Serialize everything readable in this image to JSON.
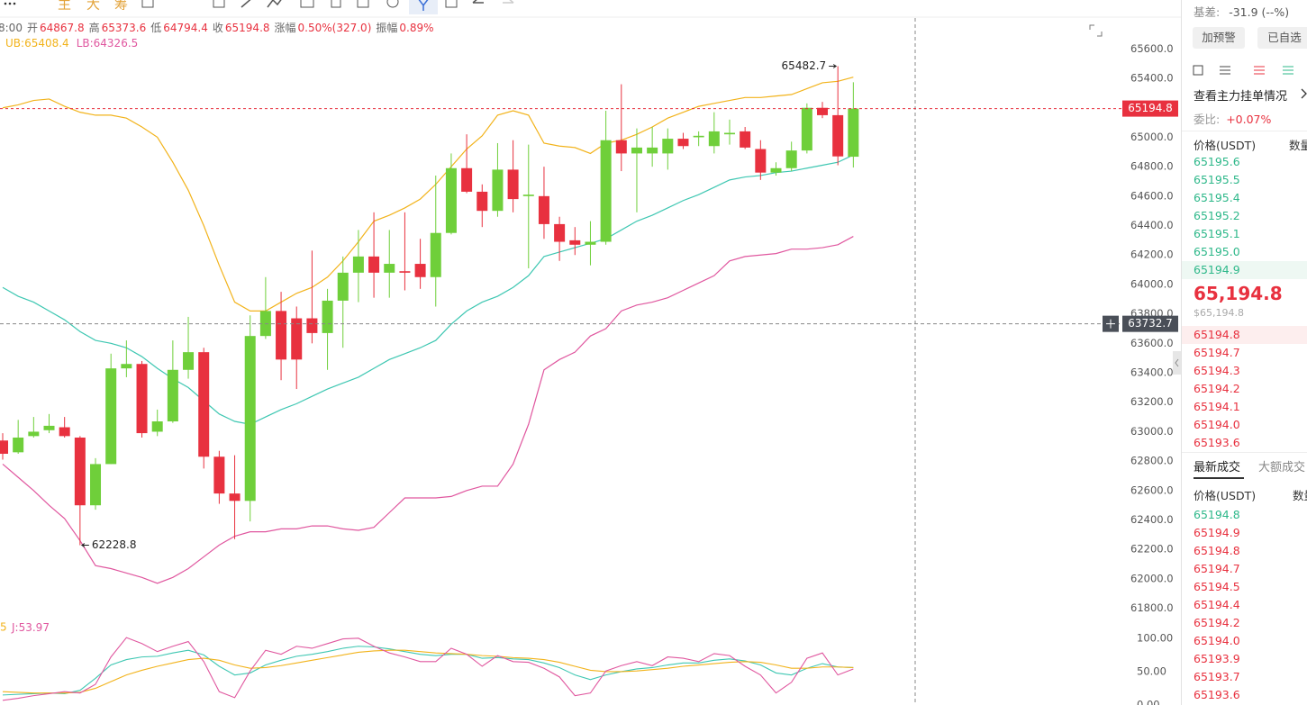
{
  "toolbar": {
    "labels": [
      "主",
      "大",
      "筹"
    ]
  },
  "info_bar": {
    "time": "8:00",
    "items": [
      {
        "label": "开",
        "value": "64867.8"
      },
      {
        "label": "高",
        "value": "65373.6"
      },
      {
        "label": "低",
        "value": "64794.4"
      },
      {
        "label": "收",
        "value": "65194.8"
      },
      {
        "label": "涨幅",
        "value": "0.50%(327.0)"
      },
      {
        "label": "振幅",
        "value": "0.89%"
      }
    ]
  },
  "chart_data": [
    {
      "type": "candlestick",
      "up_color": "#6fcf3a",
      "down_color": "#e8313f",
      "open": [
        62940,
        62860,
        62970,
        63010,
        63030,
        62960,
        62500,
        62780,
        63430,
        63460,
        63000,
        63070,
        63420,
        63540,
        62830,
        62580,
        62530,
        63650,
        63820,
        63770,
        63770,
        63670,
        63890,
        64080,
        64190,
        64080,
        64090,
        64140,
        64050,
        64350,
        64790,
        64630,
        64500,
        64780,
        64600,
        64600,
        64410,
        64300,
        64270,
        64290,
        64980,
        64890,
        64890,
        64890,
        64990,
        65000,
        64940,
        65020,
        65040,
        64920,
        64760,
        64790,
        64910,
        65200,
        65150,
        64867.8
      ],
      "high": [
        62990,
        63080,
        63100,
        63120,
        63100,
        62970,
        62820,
        63530,
        63620,
        63480,
        63150,
        63620,
        63780,
        63570,
        62870,
        62840,
        63790,
        64050,
        63950,
        63850,
        64230,
        63970,
        64190,
        64370,
        64490,
        64370,
        64490,
        64310,
        64740,
        64890,
        65020,
        64680,
        64960,
        64980,
        64950,
        64800,
        64460,
        64390,
        64430,
        65180,
        65360,
        65060,
        65070,
        65060,
        65030,
        65040,
        65170,
        65120,
        65070,
        64980,
        64830,
        64970,
        65230,
        65240,
        65482.7,
        65373.6
      ],
      "low": [
        62810,
        62850,
        62960,
        62990,
        62960,
        62228.8,
        62470,
        62780,
        63370,
        62960,
        62970,
        63060,
        63360,
        62750,
        62510,
        62270,
        62390,
        63630,
        63350,
        63290,
        63600,
        63420,
        63570,
        63880,
        63910,
        63910,
        63960,
        63970,
        63850,
        64340,
        64620,
        64390,
        64460,
        64490,
        64110,
        64310,
        64160,
        64200,
        64130,
        64270,
        64770,
        64490,
        64800,
        64780,
        64920,
        64940,
        64890,
        64950,
        64920,
        64710,
        64740,
        64770,
        64890,
        65130,
        64810,
        64794.4
      ],
      "close": [
        62850,
        62960,
        63000,
        63040,
        62970,
        62500,
        62780,
        63430,
        63460,
        62990,
        63070,
        63420,
        63540,
        62830,
        62580,
        62530,
        63650,
        63820,
        63490,
        63490,
        63670,
        63890,
        64080,
        64190,
        64080,
        64140,
        64080,
        64050,
        64350,
        64790,
        64630,
        64500,
        64780,
        64580,
        64610,
        64410,
        64290,
        64270,
        64290,
        64980,
        64890,
        64930,
        64930,
        64990,
        64940,
        65010,
        65040,
        65030,
        64930,
        64760,
        64790,
        64910,
        65200,
        65150,
        64870,
        65194.8
      ],
      "series": [
        {
          "name": "UB:",
          "color": "#f2b31b",
          "values": [
            65200,
            65220,
            65250,
            65260,
            65210,
            65170,
            65150,
            65150,
            65130,
            65070,
            65000,
            64830,
            64640,
            64400,
            64130,
            63880,
            63820,
            63820,
            63880,
            63940,
            63980,
            64050,
            64160,
            64290,
            64430,
            64470,
            64520,
            64580,
            64680,
            64800,
            64920,
            65010,
            65150,
            65180,
            65150,
            64960,
            64940,
            64930,
            64890,
            64960,
            64980,
            65020,
            65070,
            65130,
            65170,
            65210,
            65230,
            65250,
            65270,
            65270,
            65280,
            65290,
            65330,
            65370,
            65380,
            65408.4
          ]
        },
        {
          "color": "#3ec7b2",
          "values": [
            63980,
            63920,
            63880,
            63820,
            63760,
            63680,
            63620,
            63600,
            63570,
            63510,
            63430,
            63360,
            63300,
            63210,
            63120,
            63070,
            63050,
            63100,
            63150,
            63190,
            63240,
            63290,
            63330,
            63370,
            63430,
            63490,
            63530,
            63570,
            63620,
            63730,
            63820,
            63880,
            63920,
            63980,
            64060,
            64190,
            64220,
            64250,
            64280,
            64310,
            64370,
            64430,
            64470,
            64520,
            64570,
            64610,
            64660,
            64710,
            64730,
            64740,
            64760,
            64770,
            64790,
            64810,
            64830,
            64880
          ]
        },
        {
          "name": "LB:",
          "color": "#e0579f",
          "values": [
            62780,
            62690,
            62600,
            62500,
            62410,
            62260,
            62090,
            62070,
            62040,
            62010,
            61970,
            62010,
            62070,
            62150,
            62230,
            62290,
            62320,
            62320,
            62340,
            62340,
            62360,
            62360,
            62340,
            62330,
            62350,
            62450,
            62550,
            62550,
            62550,
            62560,
            62600,
            62630,
            62630,
            62780,
            63050,
            63420,
            63490,
            63540,
            63650,
            63700,
            63820,
            63860,
            63880,
            63910,
            63960,
            64010,
            64060,
            64160,
            64190,
            64200,
            64210,
            64240,
            64240,
            64250,
            64270,
            64326.5
          ]
        }
      ],
      "crosshair": 63732.7,
      "ylim": [
        61700,
        65810
      ],
      "yticks": [
        {
          "value": 61800,
          "label": "61800.0"
        },
        {
          "value": 62000,
          "label": "62000.0"
        },
        {
          "value": 62200,
          "label": "62200.0"
        },
        {
          "value": 62400,
          "label": "62400.0"
        },
        {
          "value": 62600,
          "label": "62600.0"
        },
        {
          "value": 62800,
          "label": "62800.0"
        },
        {
          "value": 63000,
          "label": "63000.0"
        },
        {
          "value": 63200,
          "label": "63200.0"
        },
        {
          "value": 63400,
          "label": "63400.0"
        },
        {
          "value": 63600,
          "label": "63600.0"
        },
        {
          "value": 63800,
          "label": "63800.0"
        },
        {
          "value": 64000,
          "label": "64000.0"
        },
        {
          "value": 64200,
          "label": "64200.0"
        },
        {
          "value": 64400,
          "label": "64400.0"
        },
        {
          "value": 64600,
          "label": "64600.0"
        },
        {
          "value": 64800,
          "label": "64800.0"
        },
        {
          "value": 65000,
          "label": "65000.0"
        },
        {
          "value": 65200,
          "label": "65200.0"
        },
        {
          "value": 65400,
          "label": "65400.0"
        },
        {
          "value": 65600,
          "label": "65600.0"
        }
      ]
    },
    {
      "type": "line",
      "clipped_legend": "5",
      "series": [
        {
          "color": "#3ec7b2",
          "values": [
            15,
            16,
            17,
            18,
            17,
            22,
            40,
            60,
            68,
            72,
            73,
            78,
            82,
            75,
            58,
            45,
            48,
            60,
            67,
            73,
            76,
            80,
            85,
            88,
            87,
            84,
            80,
            76,
            74,
            76,
            76,
            70,
            71,
            69,
            68,
            63,
            56,
            45,
            38,
            45,
            50,
            54,
            56,
            60,
            63,
            63,
            67,
            69,
            66,
            60,
            48,
            45,
            55,
            62,
            57,
            56
          ]
        },
        {
          "color": "#f2b31b",
          "values": [
            20,
            19,
            18,
            18,
            18,
            19,
            25,
            35,
            45,
            52,
            58,
            63,
            68,
            70,
            67,
            60,
            55,
            56,
            59,
            63,
            67,
            71,
            75,
            79,
            81,
            82,
            82,
            80,
            78,
            77,
            76,
            74,
            73,
            71,
            70,
            68,
            64,
            58,
            52,
            50,
            50,
            51,
            53,
            55,
            58,
            60,
            62,
            64,
            65,
            64,
            60,
            55,
            55,
            57,
            57,
            56
          ]
        },
        {
          "name": "J:",
          "color": "#e0579f",
          "values": [
            7,
            10,
            14,
            17,
            20,
            18,
            31,
            72,
            101,
            92,
            80,
            88,
            95,
            65,
            20,
            11,
            51,
            82,
            76,
            88,
            85,
            92,
            99,
            100,
            88,
            78,
            72,
            65,
            65,
            85,
            76,
            58,
            74,
            65,
            64,
            55,
            42,
            14,
            18,
            51,
            59,
            65,
            59,
            72,
            70,
            65,
            77,
            74,
            58,
            45,
            18,
            34,
            70,
            78,
            45,
            53.97
          ]
        }
      ],
      "ylim": [
        0,
        116
      ],
      "yticks": [
        {
          "value": 0,
          "label": "0.00"
        },
        {
          "value": 50,
          "label": "50.00"
        },
        {
          "value": 100,
          "label": "100.00"
        }
      ]
    }
  ],
  "panel": {
    "basis_label": "基差:",
    "basis_value": "-31.9 (--%)",
    "buttons": [
      "加预警",
      "已自选"
    ],
    "main_orders_link": "查看主力挂单情况",
    "ratio_label": "委比:",
    "ratio_value": "+0.07%",
    "book_headers": [
      "价格(USDT)",
      "数量"
    ],
    "ask_color": "#2eb88a",
    "bid_color": "#e8313f",
    "asks": [
      "65195.6",
      "65195.5",
      "65195.4",
      "65195.2",
      "65195.1",
      "65195.0",
      "65194.9"
    ],
    "last_price": "65,194.8",
    "last_price_usd": "$65,194.8",
    "bids": [
      "65194.8",
      "65194.7",
      "65194.3",
      "65194.2",
      "65194.1",
      "65194.0",
      "65193.6"
    ],
    "tabs": [
      "最新成交",
      "大额成交"
    ],
    "trade_headers": [
      "价格(USDT)",
      "数量"
    ],
    "trades": [
      {
        "price": "65194.8",
        "color": "#2eb88a"
      },
      {
        "price": "65194.9",
        "color": "#e8313f"
      },
      {
        "price": "65194.8",
        "color": "#e8313f"
      },
      {
        "price": "65194.7",
        "color": "#e8313f"
      },
      {
        "price": "65194.5",
        "color": "#e8313f"
      },
      {
        "price": "65194.4",
        "color": "#e8313f"
      },
      {
        "price": "65194.2",
        "color": "#e8313f"
      },
      {
        "price": "65194.0",
        "color": "#e8313f"
      },
      {
        "price": "65193.9",
        "color": "#e8313f"
      },
      {
        "price": "65193.7",
        "color": "#e8313f"
      },
      {
        "price": "65193.6",
        "color": "#e8313f"
      }
    ]
  }
}
